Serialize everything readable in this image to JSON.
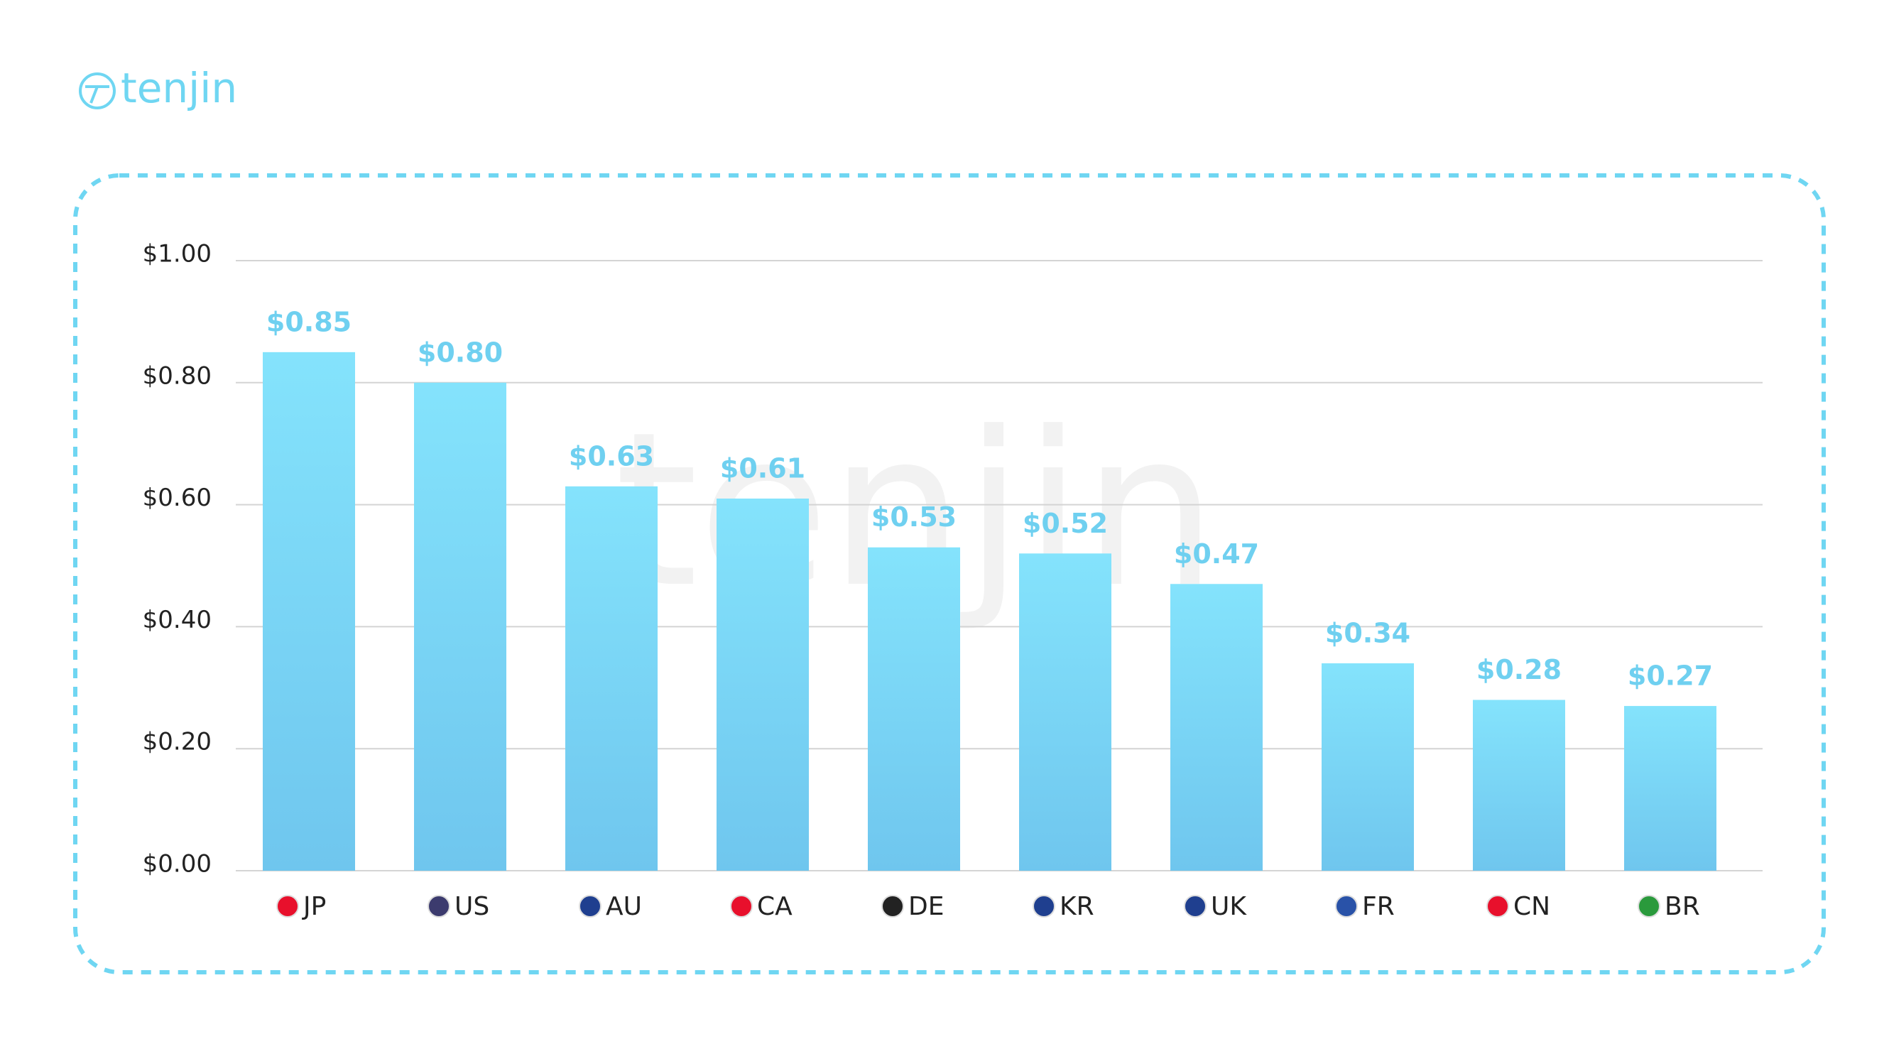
{
  "logo": "tenjin",
  "chart_data": {
    "type": "bar",
    "watermark": "tenjin",
    "categories": [
      "JP",
      "US",
      "AU",
      "CA",
      "DE",
      "KR",
      "UK",
      "FR",
      "CN",
      "BR"
    ],
    "values": [
      0.85,
      0.8,
      0.63,
      0.61,
      0.53,
      0.52,
      0.47,
      0.34,
      0.28,
      0.27
    ],
    "value_labels": [
      "$0.85",
      "$0.80",
      "$0.63",
      "$0.61",
      "$0.53",
      "$0.52",
      "$0.47",
      "$0.34",
      "$0.28",
      "$0.27"
    ],
    "color": "#7adcf8",
    "ylim": [
      0,
      1
    ],
    "yticks": [
      {
        "value": 0,
        "label": "$0.00"
      },
      {
        "value": 0.2,
        "label": "$0.20"
      },
      {
        "value": 0.4,
        "label": "$0.40"
      },
      {
        "value": 0.6,
        "label": "$0.60"
      },
      {
        "value": 0.8,
        "label": "$0.80"
      },
      {
        "value": 1,
        "label": "$1.00"
      }
    ],
    "grid": true
  }
}
